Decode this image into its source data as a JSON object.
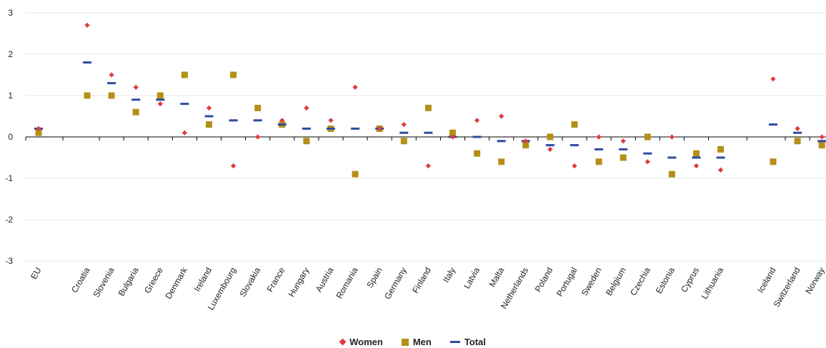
{
  "chart_data": {
    "type": "scatter",
    "title": "",
    "xlabel": "",
    "ylabel": "",
    "ylim": [
      -3,
      3
    ],
    "yticks": [
      3,
      2,
      1,
      0,
      -1,
      -2,
      -3
    ],
    "grid": true,
    "legend_placement": "bottom-center",
    "categories": [
      "EU",
      "Croatia",
      "Slovenia",
      "Bulgaria",
      "Greece",
      "Denmark",
      "Ireland",
      "Luxembourg",
      "Slovakia",
      "France",
      "Hungary",
      "Austria",
      "Romania",
      "Spain",
      "Germany",
      "Finland",
      "Italy",
      "Latvia",
      "Malta",
      "Netherlands",
      "Poland",
      "Portugal",
      "Sweden",
      "Belgium",
      "Czechia",
      "Estonia",
      "Cyprus",
      "Lithuania",
      "Iceland",
      "Switzerland",
      "Norway"
    ],
    "series": [
      {
        "name": "Women",
        "marker": "diamond",
        "color": "#e03a3e",
        "values": [
          0.2,
          2.7,
          1.5,
          1.2,
          0.8,
          0.1,
          0.7,
          -0.7,
          0.0,
          0.4,
          0.7,
          0.4,
          1.2,
          0.2,
          0.3,
          -0.7,
          0.0,
          0.4,
          0.5,
          -0.1,
          -0.3,
          -0.7,
          0.0,
          -0.1,
          -0.6,
          0.0,
          -0.7,
          -0.8,
          1.4,
          0.2,
          0.0
        ]
      },
      {
        "name": "Men",
        "marker": "square",
        "color": "#b39016",
        "values": [
          0.1,
          1.0,
          1.0,
          0.6,
          1.0,
          1.5,
          0.3,
          1.5,
          0.7,
          0.3,
          -0.1,
          0.2,
          -0.9,
          0.2,
          -0.1,
          0.7,
          0.1,
          -0.4,
          -0.6,
          -0.2,
          0.0,
          0.3,
          -0.6,
          -0.5,
          0.0,
          -0.9,
          -0.4,
          -0.3,
          -0.6,
          -0.1,
          -0.2
        ]
      },
      {
        "name": "Total",
        "marker": "dash",
        "color": "#2e4ca0",
        "values": [
          0.2,
          1.8,
          1.3,
          0.9,
          0.9,
          0.8,
          0.5,
          0.4,
          0.4,
          0.3,
          0.2,
          0.2,
          0.2,
          0.2,
          0.1,
          0.1,
          0.0,
          0.0,
          -0.1,
          -0.1,
          -0.2,
          -0.2,
          -0.3,
          -0.3,
          -0.4,
          -0.5,
          -0.5,
          -0.5,
          0.3,
          0.1,
          -0.1
        ]
      }
    ]
  }
}
